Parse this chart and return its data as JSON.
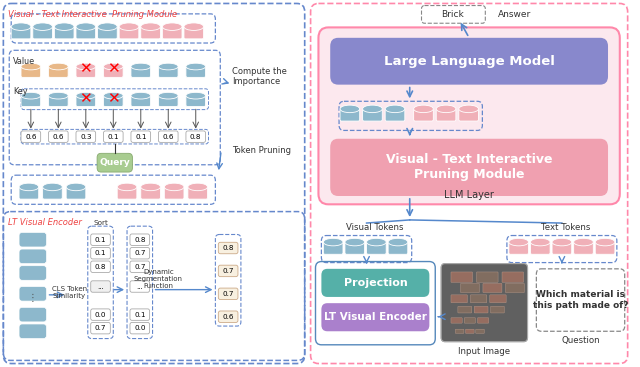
{
  "bg_color": "#ffffff",
  "top_module_label": "Visual - Text Interactive  Pruning Module",
  "bottom_module_label": "LT Visual Encoder",
  "blue_token": "#8db8cc",
  "pink_token": "#f0b0b8",
  "green_query": "#a0c890",
  "orange_value": "#e8b888",
  "llm_color": "#8888cc",
  "vtip_color": "#f0a0b0",
  "proj_color": "#55b0a8",
  "lt_enc_color": "#aa80cc",
  "large_language_model_text": "Large Language Model",
  "vtip_text": "Visual - Text Interactive\nPruning Module",
  "llm_layer_text": "LLM Layer",
  "projection_text": "Projection",
  "lt_encoder_text": "LT Visual Encoder",
  "visual_tokens_text": "Visual Tokens",
  "text_tokens_text": "Text Tokens",
  "input_image_text": "Input Image",
  "question_text": "Question",
  "answer_text": "Answer",
  "brick_text": "Brick",
  "cls_token_text": "CLS Token\nSimilarity",
  "sort_text": "Sort",
  "dynamic_seg_text": "Dynamic\nSegmentation\nFunction",
  "compute_text": "Compute the\nImportance",
  "token_pruning_text": "Token Pruning",
  "value_text": "Value",
  "key_text": "Key",
  "query_text": "Query",
  "scores": [
    "0.6",
    "0.6",
    "0.3",
    "0.1",
    "0.1",
    "0.6",
    "0.8"
  ],
  "lt_col1": [
    "0.1",
    "0.1",
    "0.8",
    "...",
    "0.0",
    "0.7"
  ],
  "lt_col2": [
    "0.8",
    "0.7",
    "0.7",
    "...",
    "0.1",
    "0.0"
  ],
  "lt_col3": [
    "0.8",
    "0.7",
    "0.7",
    "0.6"
  ]
}
